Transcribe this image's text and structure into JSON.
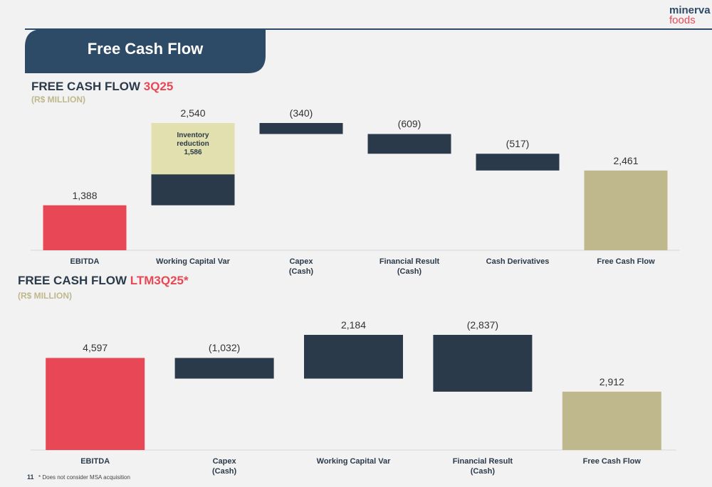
{
  "header": {
    "title": "Free Cash Flow",
    "logo_top": "minerva",
    "logo_bottom": "foods"
  },
  "footer": {
    "page": "11",
    "note": "* Does not consider MSA acquisition"
  },
  "chart_data": [
    {
      "type": "waterfall",
      "title": "FREE CASH FLOW",
      "title_highlight": "3Q25",
      "subtitle": "(R$ MILLION)",
      "categories": [
        "EBITDA",
        "Working Capital Var",
        "Capex\n(Cash)",
        "Financial Result\n(Cash)",
        "Cash Derivatives",
        "Free Cash Flow"
      ],
      "values": [
        1388,
        2540,
        -340,
        -609,
        -517,
        2461
      ],
      "value_labels": [
        "1,388",
        "2,540",
        "(340)",
        "(609)",
        "(517)",
        "2,461"
      ],
      "measure": [
        "absolute",
        "relative",
        "relative",
        "relative",
        "relative",
        "total"
      ],
      "colors": [
        "#e84855",
        "#2b3a4a",
        "#2b3a4a",
        "#2b3a4a",
        "#2b3a4a",
        "#bfb88c"
      ],
      "annotation": {
        "category": "Working Capital Var",
        "text": "Inventory reduction",
        "value": 1586,
        "value_label": "1,586",
        "color": "#e2e0ae"
      }
    },
    {
      "type": "waterfall",
      "title": "FREE CASH FLOW",
      "title_highlight": "LTM3Q25*",
      "subtitle": "(R$ MILLION)",
      "categories": [
        "EBITDA",
        "Capex\n(Cash)",
        "Working Capital Var",
        "Financial Result\n(Cash)",
        "Free Cash Flow"
      ],
      "values": [
        4597,
        -1032,
        2184,
        -2837,
        2912
      ],
      "value_labels": [
        "4,597",
        "(1,032)",
        "2,184",
        "(2,837)",
        "2,912"
      ],
      "measure": [
        "absolute",
        "relative",
        "relative",
        "relative",
        "total"
      ],
      "colors": [
        "#e84855",
        "#2b3a4a",
        "#2b3a4a",
        "#2b3a4a",
        "#bfb88c"
      ]
    }
  ]
}
